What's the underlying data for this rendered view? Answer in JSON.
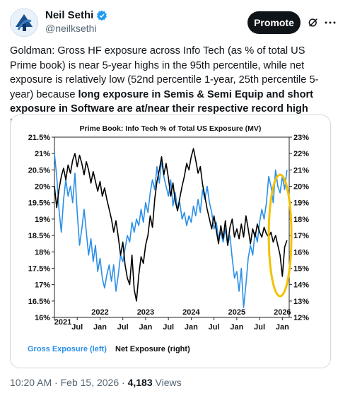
{
  "author": {
    "display_name": "Neil Sethi",
    "handle": "@neilksethi",
    "avatar_icon": "logo-avatar",
    "verified_icon": "verified-badge-icon"
  },
  "actions": {
    "promote_label": "Promote",
    "grok_icon": "grok-icon",
    "more_icon": "more-icon"
  },
  "tweet": {
    "text_plain": "Goldman: Gross HF exposure across Info Tech (as % of total US Prime book) is near 5-year highs in the 95th percentile, while net exposure is relatively low (52nd percentile 1-year, 25th percentile 5-year) because ",
    "text_bold": "long exposure in Semis & Semi Equip and short exposure in Software are at/near their respective record high levels on our records."
  },
  "footer": {
    "time": "10:20 AM",
    "date": "Feb 15, 2026",
    "sep": "·",
    "views_count": "4,183",
    "views_label": "Views"
  },
  "chart_data": {
    "type": "line",
    "title": "Prime Book: Info Tech % of Total US Exposure (MV)",
    "x_axis": {
      "ticks": [
        "2021",
        "Jul",
        "Jan",
        "Jul",
        "Jan",
        "Jul",
        "Jan",
        "Jul",
        "Jan",
        "Jul",
        "Jan"
      ],
      "years": [
        "2022",
        "2023",
        "2024",
        "2025",
        "2026"
      ],
      "range": [
        2021.0,
        2026.15
      ]
    },
    "y_left": {
      "ticks": [
        "21.5%",
        "21%",
        "20.5%",
        "20%",
        "19.5%",
        "19%",
        "18.5%",
        "18%",
        "17.5%",
        "17%",
        "16.5%",
        "16%"
      ],
      "range": [
        16,
        21.5
      ]
    },
    "y_right": {
      "ticks": [
        "23%",
        "22%",
        "21%",
        "20%",
        "19%",
        "18%",
        "17%",
        "16%",
        "15%",
        "14%",
        "13%",
        "12%"
      ],
      "range": [
        12,
        23
      ]
    },
    "series": [
      {
        "name": "Gross Exposure (left)",
        "axis": "left",
        "color": "#2b8fe8",
        "x": [
          2021.0,
          2021.05,
          2021.1,
          2021.15,
          2021.2,
          2021.25,
          2021.3,
          2021.35,
          2021.4,
          2021.45,
          2021.5,
          2021.55,
          2021.6,
          2021.65,
          2021.7,
          2021.75,
          2021.8,
          2021.85,
          2021.9,
          2021.95,
          2022.0,
          2022.05,
          2022.1,
          2022.15,
          2022.2,
          2022.25,
          2022.3,
          2022.35,
          2022.4,
          2022.45,
          2022.5,
          2022.55,
          2022.6,
          2022.65,
          2022.7,
          2022.75,
          2022.8,
          2022.85,
          2022.9,
          2022.95,
          2023.0,
          2023.05,
          2023.1,
          2023.15,
          2023.2,
          2023.25,
          2023.3,
          2023.35,
          2023.4,
          2023.45,
          2023.5,
          2023.55,
          2023.6,
          2023.65,
          2023.7,
          2023.75,
          2023.8,
          2023.85,
          2023.9,
          2023.95,
          2024.0,
          2024.05,
          2024.1,
          2024.15,
          2024.2,
          2024.25,
          2024.3,
          2024.35,
          2024.4,
          2024.45,
          2024.5,
          2024.55,
          2024.6,
          2024.65,
          2024.7,
          2024.75,
          2024.8,
          2024.85,
          2024.9,
          2024.95,
          2025.0,
          2025.05,
          2025.1,
          2025.15,
          2025.2,
          2025.25,
          2025.3,
          2025.35,
          2025.4,
          2025.45,
          2025.5,
          2025.55,
          2025.6,
          2025.65,
          2025.7,
          2025.75,
          2025.8,
          2025.85,
          2025.9,
          2025.95,
          2026.0,
          2026.05,
          2026.1
        ],
        "y": [
          21.0,
          20.3,
          19.3,
          18.6,
          19.6,
          20.2,
          19.7,
          20.0,
          19.5,
          20.4,
          19.2,
          18.2,
          18.7,
          19.3,
          18.6,
          17.9,
          18.4,
          17.7,
          18.2,
          17.4,
          17.8,
          17.2,
          16.9,
          17.3,
          17.6,
          17.1,
          17.6,
          16.8,
          17.3,
          17.9,
          17.7,
          18.1,
          18.5,
          18.3,
          18.9,
          18.6,
          19.0,
          18.8,
          19.3,
          18.9,
          19.5,
          19.2,
          19.8,
          20.2,
          19.9,
          20.6,
          20.1,
          20.8,
          20.3,
          20.0,
          19.7,
          20.2,
          19.4,
          19.8,
          19.3,
          19.5,
          19.0,
          19.2,
          18.8,
          19.1,
          18.9,
          19.4,
          19.1,
          19.6,
          19.2,
          19.9,
          19.6,
          20.0,
          19.5,
          19.2,
          18.7,
          18.9,
          18.4,
          18.6,
          18.3,
          18.7,
          18.2,
          18.5,
          17.8,
          17.2,
          17.4,
          16.8,
          17.5,
          16.3,
          17.0,
          17.8,
          18.2,
          17.9,
          18.6,
          18.3,
          18.9,
          19.3,
          19.0,
          19.5,
          20.3,
          20.0,
          19.5,
          20.5,
          20.0,
          19.8,
          20.3,
          19.9,
          20.5
        ]
      },
      {
        "name": "Net Exposure (right)",
        "axis": "right",
        "color": "#000000",
        "x": [
          2021.0,
          2021.05,
          2021.1,
          2021.15,
          2021.2,
          2021.25,
          2021.3,
          2021.35,
          2021.4,
          2021.45,
          2021.5,
          2021.55,
          2021.6,
          2021.65,
          2021.7,
          2021.75,
          2021.8,
          2021.85,
          2021.9,
          2021.95,
          2022.0,
          2022.05,
          2022.1,
          2022.15,
          2022.2,
          2022.25,
          2022.3,
          2022.35,
          2022.4,
          2022.45,
          2022.5,
          2022.55,
          2022.6,
          2022.65,
          2022.7,
          2022.75,
          2022.8,
          2022.85,
          2022.9,
          2022.95,
          2023.0,
          2023.05,
          2023.1,
          2023.15,
          2023.2,
          2023.25,
          2023.3,
          2023.35,
          2023.4,
          2023.45,
          2023.5,
          2023.55,
          2023.6,
          2023.65,
          2023.7,
          2023.75,
          2023.8,
          2023.85,
          2023.9,
          2023.95,
          2024.0,
          2024.05,
          2024.1,
          2024.15,
          2024.2,
          2024.25,
          2024.3,
          2024.35,
          2024.4,
          2024.45,
          2024.5,
          2024.55,
          2024.6,
          2024.65,
          2024.7,
          2024.75,
          2024.8,
          2024.85,
          2024.9,
          2024.95,
          2025.0,
          2025.05,
          2025.1,
          2025.15,
          2025.2,
          2025.25,
          2025.3,
          2025.35,
          2025.4,
          2025.45,
          2025.5,
          2025.55,
          2025.6,
          2025.65,
          2025.7,
          2025.75,
          2025.8,
          2025.85,
          2025.9,
          2025.95,
          2026.0,
          2026.05,
          2026.1
        ],
        "y": [
          20.0,
          18.7,
          19.8,
          20.6,
          21.1,
          20.4,
          21.3,
          20.8,
          21.6,
          22.0,
          21.2,
          21.9,
          21.4,
          20.7,
          21.5,
          21.0,
          20.2,
          20.9,
          20.3,
          19.7,
          20.3,
          19.4,
          19.9,
          19.2,
          18.6,
          18.0,
          17.2,
          17.9,
          16.9,
          15.8,
          16.6,
          15.2,
          14.4,
          14.0,
          15.8,
          13.7,
          13.0,
          14.6,
          15.7,
          15.3,
          16.4,
          17.0,
          18.2,
          17.5,
          19.2,
          20.3,
          21.0,
          21.8,
          20.7,
          21.4,
          20.5,
          19.4,
          20.2,
          19.1,
          18.5,
          19.3,
          20.0,
          20.6,
          21.4,
          21.0,
          21.8,
          22.3,
          21.6,
          20.8,
          21.2,
          20.1,
          19.4,
          18.6,
          18.0,
          17.4,
          18.2,
          17.3,
          16.5,
          17.6,
          16.8,
          17.9,
          16.4,
          17.5,
          18.0,
          16.9,
          17.4,
          16.8,
          17.7,
          16.9,
          18.2,
          17.4,
          16.5,
          17.4,
          16.9,
          17.7,
          17.2,
          16.9,
          17.5,
          17.1,
          16.9,
          17.2,
          16.6,
          17.0,
          16.4,
          15.8,
          14.5,
          16.3,
          16.7
        ]
      }
    ],
    "legend": [
      "Gross Exposure (left)",
      "Net Exposure (right)"
    ],
    "legend_position": "bottom-left",
    "annotation": {
      "shape": "ellipse",
      "color": "#f2c200",
      "x_center": 2025.95,
      "y_center_left": 18.5
    },
    "grid": false
  }
}
